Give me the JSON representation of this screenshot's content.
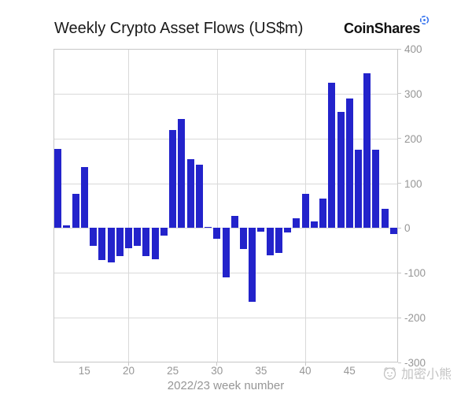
{
  "header": {
    "title": "Weekly Crypto Asset Flows (US$m)",
    "logo": {
      "text": "CoinShares"
    }
  },
  "chart_data": {
    "type": "bar",
    "title": "Weekly Crypto Asset Flows (US$m)",
    "xlabel": "2022/23 week number",
    "ylabel": "",
    "x": [
      12,
      13,
      14,
      15,
      16,
      17,
      18,
      19,
      20,
      21,
      22,
      23,
      24,
      25,
      26,
      27,
      28,
      29,
      30,
      31,
      32,
      33,
      34,
      35,
      36,
      37,
      38,
      39,
      40,
      41,
      42,
      43,
      44,
      45,
      46,
      47,
      48,
      49,
      50
    ],
    "values": [
      176,
      6,
      76,
      136,
      -39,
      -72,
      -76,
      -62,
      -45,
      -39,
      -62,
      -70,
      -16,
      219,
      244,
      154,
      141,
      2,
      -24,
      -110,
      27,
      -47,
      -165,
      -8,
      -61,
      -56,
      -9,
      22,
      77,
      14,
      66,
      324,
      259,
      290,
      175,
      346,
      175,
      43,
      -13
    ],
    "x_ticks": [
      15,
      20,
      25,
      30,
      35,
      40,
      45
    ],
    "x_gridlines": [
      20,
      30,
      40
    ],
    "y_ticks": [
      400,
      300,
      200,
      100,
      0,
      -100,
      -200,
      -300
    ],
    "ylim": [
      -300,
      400
    ],
    "grid": "on",
    "legend_position": "none",
    "y_axis_side": "right",
    "colors": {
      "bar": "#2323cb",
      "grid": "#d9d9d9",
      "border": "#c7c7c7",
      "tick_text": "#969696",
      "title_text": "#1a1a1a",
      "logo_icon": "#2b6ced",
      "watermark": "#c3c3c3"
    }
  },
  "watermark": {
    "text": "加密小熊"
  }
}
